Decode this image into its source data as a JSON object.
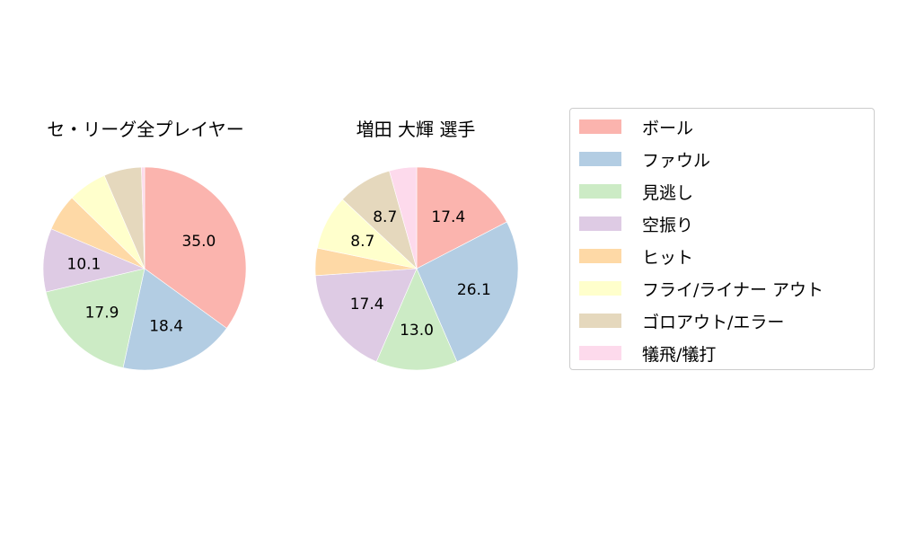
{
  "chart_data": [
    {
      "type": "pie",
      "title": "セ・リーグ全プレイヤー",
      "categories": [
        "ボール",
        "ファウル",
        "見逃し",
        "空振り",
        "ヒット",
        "フライ/ライナー アウト",
        "ゴロアウト/エラー",
        "犠飛/犠打"
      ],
      "values": [
        35.0,
        18.4,
        17.9,
        10.1,
        5.9,
        6.2,
        6.0,
        0.5
      ],
      "labels_shown": [
        "35.0",
        "18.4",
        "17.9",
        "10.1",
        "",
        "",
        "",
        ""
      ]
    },
    {
      "type": "pie",
      "title": "増田 大輝  選手",
      "categories": [
        "ボール",
        "ファウル",
        "見逃し",
        "空振り",
        "ヒット",
        "フライ/ライナー アウト",
        "ゴロアウト/エラー",
        "犠飛/犠打"
      ],
      "values": [
        17.4,
        26.1,
        13.0,
        17.4,
        4.35,
        8.7,
        8.7,
        4.35
      ],
      "labels_shown": [
        "17.4",
        "26.1",
        "13.0",
        "17.4",
        "",
        "8.7",
        "8.7",
        ""
      ]
    }
  ],
  "titles": {
    "left": "セ・リーグ全プレイヤー",
    "right": "増田 大輝  選手"
  },
  "legend": {
    "position": "right",
    "items": [
      {
        "label": "ボール",
        "color": "#fbb4ae"
      },
      {
        "label": "ファウル",
        "color": "#b3cde3"
      },
      {
        "label": "見逃し",
        "color": "#ccebc5"
      },
      {
        "label": "空振り",
        "color": "#decbe4"
      },
      {
        "label": "ヒット",
        "color": "#fed9a6"
      },
      {
        "label": "フライ/ライナー アウト",
        "color": "#ffffcc"
      },
      {
        "label": "ゴロアウト/エラー",
        "color": "#e5d8bd"
      },
      {
        "label": "犠飛/犠打",
        "color": "#fddaec"
      }
    ]
  }
}
